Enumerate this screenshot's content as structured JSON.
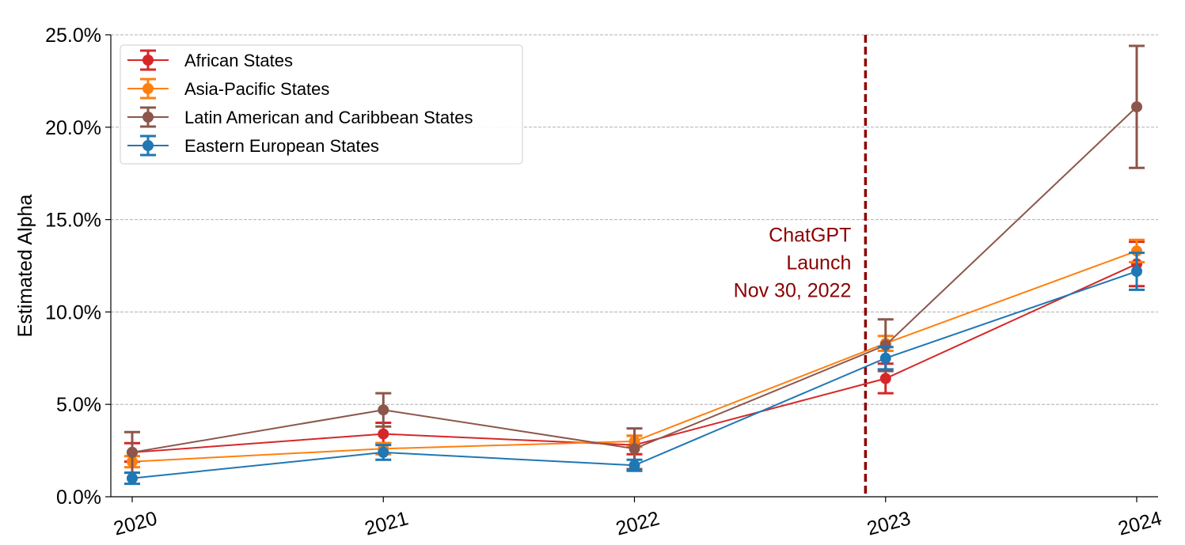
{
  "chart_data": {
    "type": "line",
    "x": [
      "2020",
      "2021",
      "2022",
      "2023",
      "2024"
    ],
    "ylabel": "Estimated Alpha",
    "ylim": [
      0,
      25
    ],
    "yticks": [
      0,
      5,
      10,
      15,
      20,
      25
    ],
    "ytick_labels": [
      "0.0%",
      "5.0%",
      "10.0%",
      "15.0%",
      "20.0%",
      "25.0%"
    ],
    "y_unit": "%",
    "grid": "horizontal dashed",
    "legend_position": "top-left",
    "series": [
      {
        "name": "African States",
        "color": "#d62728",
        "values": [
          2.4,
          3.4,
          2.8,
          6.4,
          12.6
        ],
        "err_low": [
          1.9,
          2.9,
          2.3,
          5.6,
          11.4
        ],
        "err_high": [
          2.9,
          4.0,
          3.3,
          7.2,
          13.8
        ]
      },
      {
        "name": "Asia-Pacific States",
        "color": "#ff7f0e",
        "values": [
          1.9,
          2.6,
          3.0,
          8.3,
          13.3
        ],
        "err_low": [
          1.6,
          2.3,
          2.7,
          7.9,
          12.7
        ],
        "err_high": [
          2.2,
          2.9,
          3.3,
          8.7,
          13.9
        ]
      },
      {
        "name": "Latin American and Caribbean States",
        "color": "#8c564b",
        "values": [
          2.4,
          4.7,
          2.6,
          8.2,
          21.1
        ],
        "err_low": [
          1.3,
          3.8,
          1.5,
          6.8,
          17.8
        ],
        "err_high": [
          3.5,
          5.6,
          3.7,
          9.6,
          24.4
        ]
      },
      {
        "name": "Eastern European States",
        "color": "#1f77b4",
        "values": [
          1.0,
          2.4,
          1.7,
          7.5,
          12.2
        ],
        "err_low": [
          0.7,
          2.0,
          1.4,
          6.9,
          11.2
        ],
        "err_high": [
          1.3,
          2.8,
          2.0,
          8.1,
          13.2
        ]
      }
    ],
    "annotation": {
      "lines": [
        "ChatGPT",
        "Launch",
        "Nov 30, 2022"
      ],
      "x_value": 2022.92,
      "color": "#8b0000"
    }
  }
}
